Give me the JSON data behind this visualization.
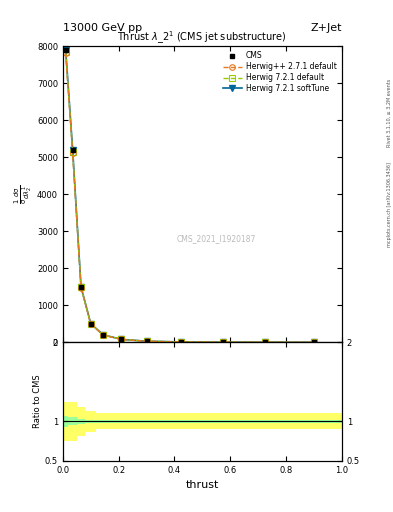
{
  "title_top": "13000 GeV pp",
  "title_right": "Z+Jet",
  "plot_title": "Thrust $\\lambda\\_2^1$ (CMS jet substructure)",
  "watermark": "CMS_2021_I1920187",
  "right_label_top": "Rivet 3.1.10, ≥ 3.2M events",
  "right_label_bottom": "mcplots.cern.ch [arXiv:1306.3436]",
  "xlabel": "thrust",
  "ylabel_ratio": "Ratio to CMS",
  "xlim": [
    0.0,
    1.0
  ],
  "ylim_main": [
    0,
    8000
  ],
  "ylim_ratio": [
    0.5,
    2.0
  ],
  "thrust_bins": [
    0.0,
    0.02,
    0.05,
    0.08,
    0.12,
    0.17,
    0.25,
    0.35,
    0.5,
    0.65,
    0.8,
    1.0
  ],
  "cms_values": [
    7900,
    5200,
    1500,
    500,
    200,
    80,
    30,
    10,
    4,
    2,
    1
  ],
  "herwig_pp_values": [
    7800,
    5100,
    1480,
    490,
    195,
    78,
    29,
    9.5,
    3.8,
    1.9,
    0.95
  ],
  "herwig721d_values": [
    7850,
    5150,
    1490,
    495,
    198,
    79,
    29.5,
    9.8,
    3.9,
    2.0,
    0.98
  ],
  "herwig721s_values": [
    7900,
    5200,
    1500,
    500,
    200,
    80,
    30,
    10,
    4,
    2,
    1
  ],
  "ratio_yellow_low": [
    0.75,
    0.75,
    0.82,
    0.87,
    0.9,
    0.9,
    0.9,
    0.9,
    0.9,
    0.9,
    0.9
  ],
  "ratio_yellow_high": [
    1.25,
    1.25,
    1.18,
    1.13,
    1.1,
    1.1,
    1.1,
    1.1,
    1.1,
    1.1,
    1.1
  ],
  "ratio_green_low": [
    0.93,
    0.95,
    0.97,
    0.98,
    0.98,
    0.98,
    0.98,
    0.98,
    0.98,
    0.98,
    0.98
  ],
  "ratio_green_high": [
    1.07,
    1.05,
    1.03,
    1.02,
    1.02,
    1.02,
    1.02,
    1.02,
    1.02,
    1.02,
    1.02
  ],
  "color_cms": "#000000",
  "color_herwig_pp": "#e87820",
  "color_herwig721d": "#99cc00",
  "color_herwig721s": "#006699",
  "color_yellow": "#ffff66",
  "color_green": "#99ff99",
  "legend_entries": [
    "CMS",
    "Herwig++ 2.7.1 default",
    "Herwig 7.2.1 default",
    "Herwig 7.2.1 softTune"
  ],
  "yticks_main": [
    0,
    1000,
    2000,
    3000,
    4000,
    5000,
    6000,
    7000,
    8000
  ],
  "ytick_labels_main": [
    "0",
    "1000",
    "2000",
    "3000",
    "4000",
    "5000",
    "6000",
    "7000",
    "8000"
  ]
}
